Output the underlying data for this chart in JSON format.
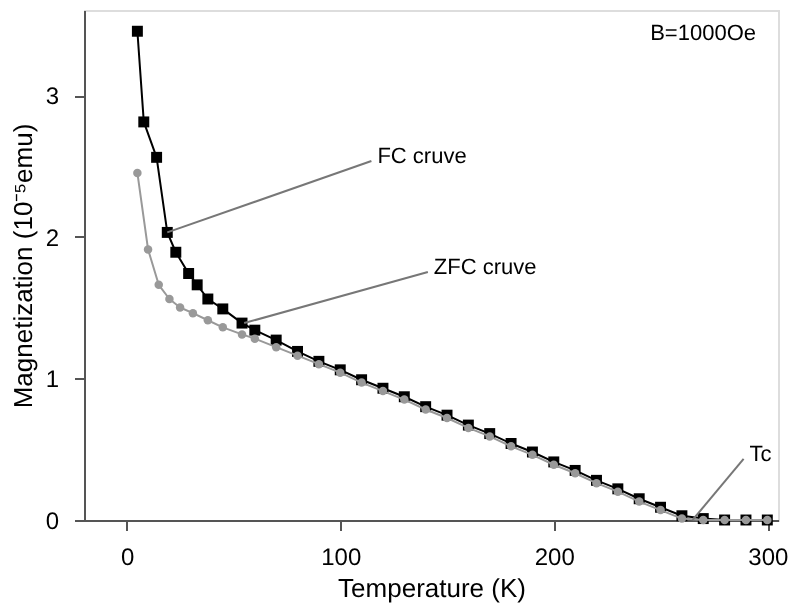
{
  "chart_data": {
    "type": "line",
    "xlabel": "Temperature (K)",
    "ylabel": "Magnetization (10⁻⁵emu)",
    "xlim": [
      -20,
      305
    ],
    "xticks": [
      0,
      100,
      200,
      300
    ],
    "ylim": [
      0,
      3.6
    ],
    "yticks": [
      0,
      1,
      2,
      3
    ],
    "series": [
      {
        "name": null,
        "color": "#000000",
        "marker": "square",
        "x": [
          5,
          8,
          14,
          19,
          23,
          29,
          33,
          38,
          45,
          54,
          60,
          70,
          80,
          90,
          100,
          110,
          120,
          130,
          140,
          150,
          160,
          170,
          180,
          190,
          200,
          210,
          220,
          230,
          240,
          250,
          260,
          270,
          280,
          290,
          300
        ],
        "values": [
          3.45,
          2.81,
          2.56,
          2.03,
          1.89,
          1.74,
          1.66,
          1.56,
          1.49,
          1.39,
          1.34,
          1.27,
          1.19,
          1.12,
          1.06,
          0.99,
          0.93,
          0.87,
          0.8,
          0.74,
          0.67,
          0.61,
          0.54,
          0.48,
          0.41,
          0.35,
          0.28,
          0.22,
          0.15,
          0.09,
          0.03,
          0.01,
          0,
          0,
          0
        ]
      },
      {
        "name": null,
        "color": "#999999",
        "marker": "circle",
        "x": [
          5,
          10,
          15,
          20,
          25,
          31,
          38,
          45,
          54,
          60,
          70,
          80,
          90,
          100,
          110,
          120,
          130,
          140,
          150,
          160,
          170,
          180,
          190,
          200,
          210,
          220,
          230,
          240,
          250,
          260,
          270,
          280,
          290,
          300
        ],
        "values": [
          2.45,
          1.91,
          1.66,
          1.56,
          1.5,
          1.46,
          1.41,
          1.36,
          1.31,
          1.28,
          1.22,
          1.16,
          1.1,
          1.04,
          0.97,
          0.91,
          0.85,
          0.78,
          0.72,
          0.65,
          0.59,
          0.52,
          0.46,
          0.39,
          0.33,
          0.26,
          0.2,
          0.13,
          0.07,
          0.01,
          0,
          0,
          0,
          0
        ]
      }
    ],
    "annotations": [
      "B=1000Oe",
      {
        "text": "FC cruve",
        "x": 19,
        "y": 2.03
      },
      {
        "text": "ZFC cruve",
        "x": 55,
        "y": 1.39
      },
      {
        "text": "Tc",
        "x": 265,
        "y": 0
      }
    ]
  }
}
